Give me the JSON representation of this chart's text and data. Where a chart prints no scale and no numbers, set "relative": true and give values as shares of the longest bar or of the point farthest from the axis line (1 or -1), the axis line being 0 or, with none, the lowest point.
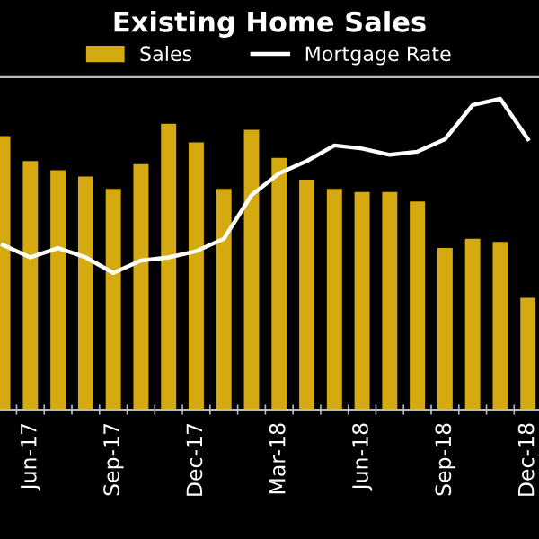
{
  "chart_data": {
    "type": "bar",
    "title": "Existing Home Sales",
    "relative": true,
    "legend": "top",
    "grid": false,
    "categories": [
      null,
      "Jun-17",
      null,
      null,
      "Sep-17",
      null,
      null,
      "Dec-17",
      null,
      null,
      "Mar-18",
      null,
      null,
      "Jun-18",
      null,
      null,
      "Sep-18",
      null,
      null,
      "Dec-18"
    ],
    "series": [
      {
        "name": "Sales",
        "color": "#d4aa10",
        "values": [
          0.88,
          0.8,
          0.77,
          0.75,
          0.71,
          0.79,
          0.92,
          0.86,
          0.71,
          0.9,
          0.81,
          0.74,
          0.71,
          0.7,
          0.7,
          0.67,
          0.52,
          0.55,
          0.54,
          0.36
        ]
      },
      {
        "name": "Mortgage Rate",
        "type": "line",
        "color": "#ffffff",
        "marker": "none",
        "line_style": "solid",
        "values": [
          0.53,
          0.49,
          0.52,
          0.49,
          0.44,
          0.48,
          0.49,
          0.51,
          0.55,
          0.69,
          0.76,
          0.8,
          0.85,
          0.84,
          0.82,
          0.83,
          0.87,
          0.98,
          1.0,
          0.87
        ]
      }
    ]
  }
}
